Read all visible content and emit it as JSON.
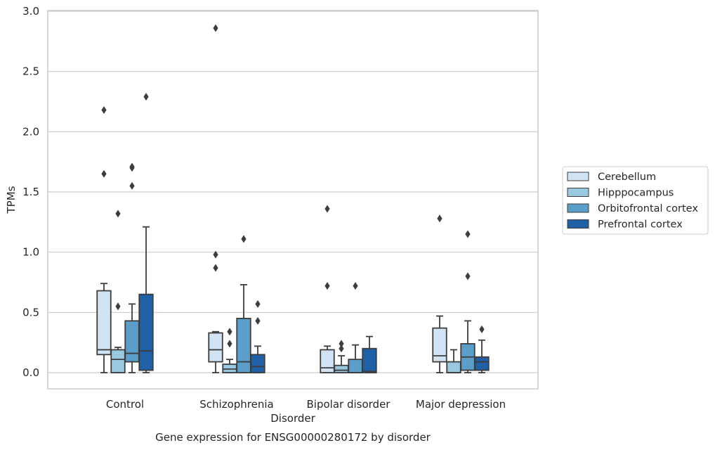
{
  "chart_data": {
    "type": "box",
    "title": "",
    "caption": "Gene expression for ENSG00000280172 by disorder",
    "xlabel": "Disorder",
    "ylabel": "TPMs",
    "ylim": [
      -0.14,
      3.0
    ],
    "yticks": [
      0.0,
      0.5,
      1.0,
      1.5,
      2.0,
      2.5,
      3.0
    ],
    "ytick_labels": [
      "0.0",
      "0.5",
      "1.0",
      "1.5",
      "2.0",
      "2.5",
      "3.0"
    ],
    "grid": "horizontal",
    "legend_position": "right",
    "categories": [
      "Control",
      "Schizophrenia",
      "Bipolar disorder",
      "Major depression"
    ],
    "series": [
      {
        "name": "Cerebellum",
        "color": "#d2e3f3",
        "boxes": [
          {
            "whislo": 0.0,
            "q1": 0.15,
            "med": 0.19,
            "q3": 0.68,
            "whishi": 0.74,
            "fliers": [
              1.65,
              2.18
            ]
          },
          {
            "whislo": 0.0,
            "q1": 0.09,
            "med": 0.19,
            "q3": 0.33,
            "whishi": 0.34,
            "fliers": [
              0.87,
              0.98,
              2.86
            ]
          },
          {
            "whislo": 0.0,
            "q1": 0.0,
            "med": 0.04,
            "q3": 0.19,
            "whishi": 0.22,
            "fliers": [
              0.72,
              1.36
            ]
          },
          {
            "whislo": 0.0,
            "q1": 0.09,
            "med": 0.14,
            "q3": 0.37,
            "whishi": 0.47,
            "fliers": [
              1.28
            ]
          }
        ]
      },
      {
        "name": "Hipppocampus",
        "color": "#9ac8e0",
        "boxes": [
          {
            "whislo": 0.0,
            "q1": 0.0,
            "med": 0.11,
            "q3": 0.19,
            "whishi": 0.21,
            "fliers": [
              0.55,
              1.32
            ]
          },
          {
            "whislo": 0.0,
            "q1": 0.0,
            "med": 0.03,
            "q3": 0.07,
            "whishi": 0.11,
            "fliers": [
              0.24,
              0.34
            ]
          },
          {
            "whislo": 0.0,
            "q1": 0.0,
            "med": 0.02,
            "q3": 0.06,
            "whishi": 0.14,
            "fliers": [
              0.2,
              0.24
            ]
          },
          {
            "whislo": 0.0,
            "q1": 0.0,
            "med": 0.0,
            "q3": 0.09,
            "whishi": 0.19,
            "fliers": []
          }
        ]
      },
      {
        "name": "Orbitofrontal cortex",
        "color": "#5a9ec9",
        "boxes": [
          {
            "whislo": 0.0,
            "q1": 0.09,
            "med": 0.16,
            "q3": 0.43,
            "whishi": 0.57,
            "fliers": [
              1.55,
              1.7,
              1.71
            ]
          },
          {
            "whislo": 0.0,
            "q1": 0.0,
            "med": 0.09,
            "q3": 0.45,
            "whishi": 0.73,
            "fliers": [
              1.11
            ]
          },
          {
            "whislo": 0.0,
            "q1": 0.0,
            "med": 0.0,
            "q3": 0.11,
            "whishi": 0.23,
            "fliers": [
              0.72
            ]
          },
          {
            "whislo": 0.0,
            "q1": 0.02,
            "med": 0.13,
            "q3": 0.24,
            "whishi": 0.43,
            "fliers": [
              0.8,
              1.15
            ]
          }
        ]
      },
      {
        "name": "Prefrontal cortex",
        "color": "#2060a6",
        "boxes": [
          {
            "whislo": 0.0,
            "q1": 0.02,
            "med": 0.18,
            "q3": 0.65,
            "whishi": 1.21,
            "fliers": [
              2.29
            ]
          },
          {
            "whislo": 0.0,
            "q1": 0.0,
            "med": 0.05,
            "q3": 0.15,
            "whishi": 0.22,
            "fliers": [
              0.43,
              0.57
            ]
          },
          {
            "whislo": 0.0,
            "q1": 0.0,
            "med": 0.01,
            "q3": 0.2,
            "whishi": 0.3,
            "fliers": []
          },
          {
            "whislo": 0.0,
            "q1": 0.02,
            "med": 0.09,
            "q3": 0.13,
            "whishi": 0.27,
            "fliers": [
              0.36
            ]
          }
        ]
      }
    ]
  }
}
